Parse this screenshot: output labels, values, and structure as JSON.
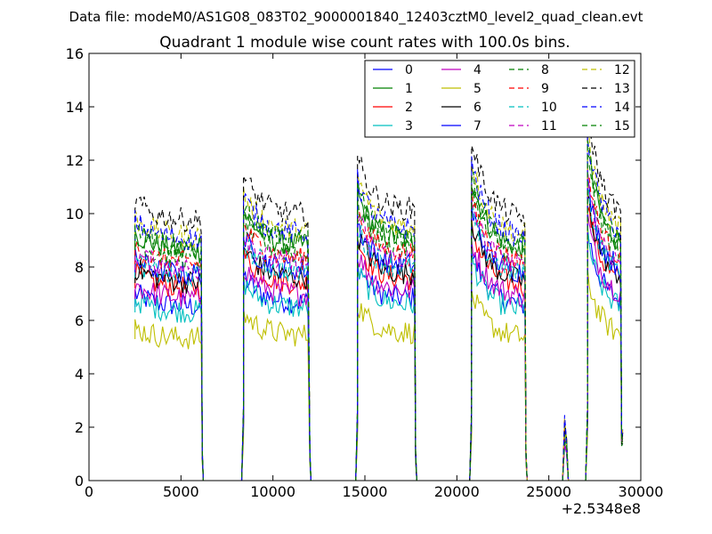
{
  "chart_data": {
    "type": "line",
    "suptitle": "Data file: modeM0/AS1G08_083T02_9000001840_12403cztM0_level2_quad_clean.evt",
    "title": "Quadrant 1 module wise count rates with 100.0s bins.",
    "xlabel": "",
    "ylabel": "",
    "x_offset_label": "+2.5348e8",
    "xlim": [
      0,
      30000
    ],
    "ylim": [
      0,
      16
    ],
    "xticks": [
      0,
      5000,
      10000,
      15000,
      20000,
      25000,
      30000
    ],
    "xtick_labels": [
      "0",
      "5000",
      "10000",
      "15000",
      "20000",
      "25000",
      "30000"
    ],
    "yticks": [
      0,
      2,
      4,
      6,
      8,
      10,
      12,
      14,
      16
    ],
    "ytick_labels": [
      "0",
      "2",
      "4",
      "6",
      "8",
      "10",
      "12",
      "14",
      "16"
    ],
    "grid": false,
    "legend_position": "top-right",
    "legend_columns": 4,
    "segments": [
      {
        "start": 2500,
        "end": 6100,
        "level": 1.0
      },
      {
        "start": 8400,
        "end": 11950,
        "level": 1.0
      },
      {
        "start": 14600,
        "end": 17700,
        "level": 1.0
      },
      {
        "start": 20800,
        "end": 23700,
        "level": 1.0
      },
      {
        "start": 27100,
        "end": 28900,
        "level": 1.0
      }
    ],
    "gap_level": 0,
    "spike": {
      "x": 25900,
      "peak_range": [
        1.3,
        2.5
      ]
    },
    "series": [
      {
        "name": "0",
        "color": "#0000ff",
        "dash": "solid",
        "base": 6.5
      },
      {
        "name": "1",
        "color": "#008000",
        "dash": "solid",
        "base": 8.6
      },
      {
        "name": "2",
        "color": "#ff0000",
        "dash": "solid",
        "base": 7.2
      },
      {
        "name": "3",
        "color": "#00bfbf",
        "dash": "solid",
        "base": 6.3
      },
      {
        "name": "4",
        "color": "#bf00bf",
        "dash": "solid",
        "base": 6.8
      },
      {
        "name": "5",
        "color": "#bfbf00",
        "dash": "solid",
        "base": 5.3
      },
      {
        "name": "6",
        "color": "#000000",
        "dash": "solid",
        "base": 7.4
      },
      {
        "name": "7",
        "color": "#0000ff",
        "dash": "solid",
        "base": 7.7
      },
      {
        "name": "8",
        "color": "#008000",
        "dash": "dashed",
        "base": 8.3
      },
      {
        "name": "9",
        "color": "#ff0000",
        "dash": "dashed",
        "base": 8.1
      },
      {
        "name": "10",
        "color": "#00bfbf",
        "dash": "dashed",
        "base": 7.6
      },
      {
        "name": "11",
        "color": "#bf00bf",
        "dash": "dashed",
        "base": 7.9
      },
      {
        "name": "12",
        "color": "#bfbf00",
        "dash": "dashed",
        "base": 9.1
      },
      {
        "name": "13",
        "color": "#000000",
        "dash": "dashed",
        "base": 9.7
      },
      {
        "name": "14",
        "color": "#0000ff",
        "dash": "dashed",
        "base": 9.0
      },
      {
        "name": "15",
        "color": "#008000",
        "dash": "dashed",
        "base": 8.7
      }
    ]
  }
}
